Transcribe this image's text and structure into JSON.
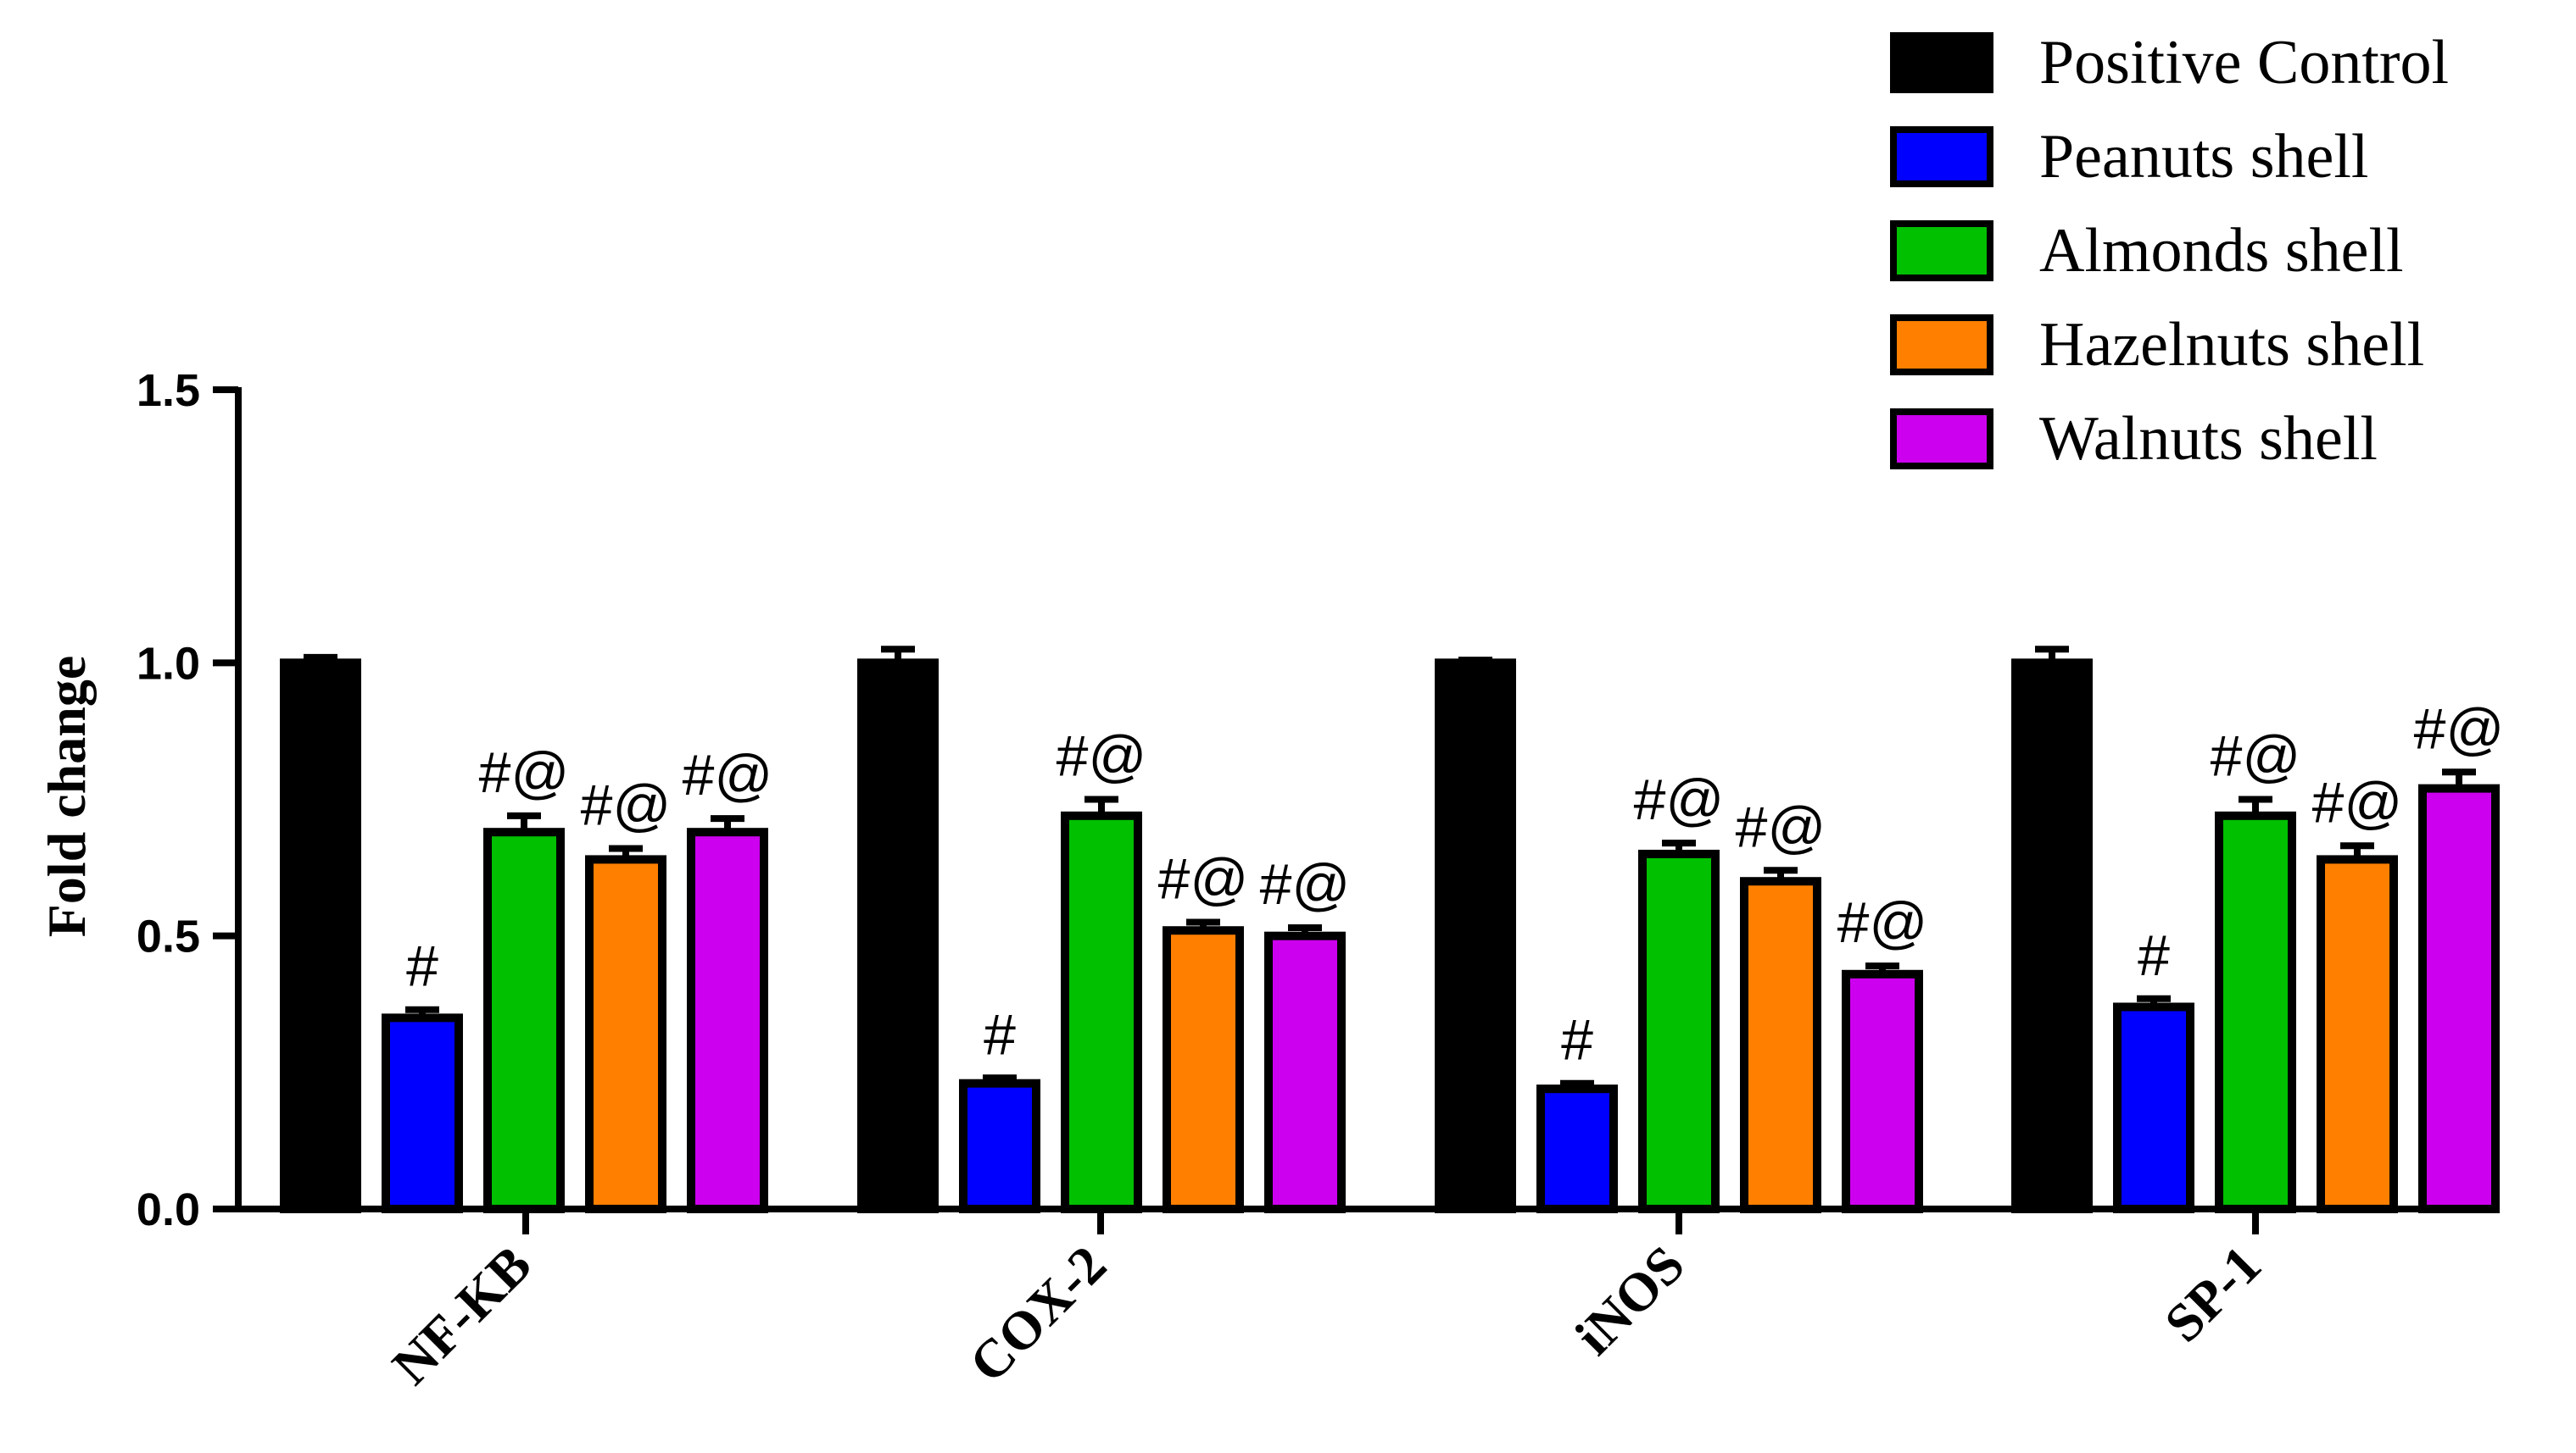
{
  "chart_data": {
    "type": "bar",
    "title": "",
    "xlabel": "",
    "ylabel": "Fold change",
    "ylim": [
      0,
      1.5
    ],
    "yticks": [
      "0.0",
      "0.5",
      "1.0",
      "1.5"
    ],
    "categories": [
      "NF-KB",
      "COX-2",
      "iNOS",
      "SP-1"
    ],
    "legend_position": "top-right",
    "series": [
      {
        "name": "Positive Control",
        "color": "#000000",
        "values": [
          1.0,
          1.0,
          1.0,
          1.0
        ],
        "errors": [
          0.01,
          0.025,
          0.005,
          0.025
        ],
        "annotations": [
          "",
          "",
          "",
          ""
        ]
      },
      {
        "name": "Peanuts shell",
        "color": "#0000ff",
        "values": [
          0.35,
          0.23,
          0.22,
          0.37
        ],
        "errors": [
          0.015,
          0.01,
          0.01,
          0.015
        ],
        "annotations": [
          "#",
          "#",
          "#",
          "#"
        ]
      },
      {
        "name": "Almonds shell",
        "color": "#00c000",
        "values": [
          0.69,
          0.72,
          0.65,
          0.72
        ],
        "errors": [
          0.03,
          0.03,
          0.02,
          0.03
        ],
        "annotations": [
          "#@",
          "#@",
          "#@",
          "#@"
        ]
      },
      {
        "name": "Hazelnuts shell",
        "color": "#ff8000",
        "values": [
          0.64,
          0.51,
          0.6,
          0.64
        ],
        "errors": [
          0.02,
          0.015,
          0.02,
          0.025
        ],
        "annotations": [
          "#@",
          "#@",
          "#@",
          "#@"
        ]
      },
      {
        "name": "Walnuts shell",
        "color": "#cc00ee",
        "values": [
          0.69,
          0.5,
          0.43,
          0.77
        ],
        "errors": [
          0.025,
          0.015,
          0.015,
          0.03
        ],
        "annotations": [
          "#@",
          "#@",
          "#@",
          "#@"
        ]
      }
    ]
  }
}
